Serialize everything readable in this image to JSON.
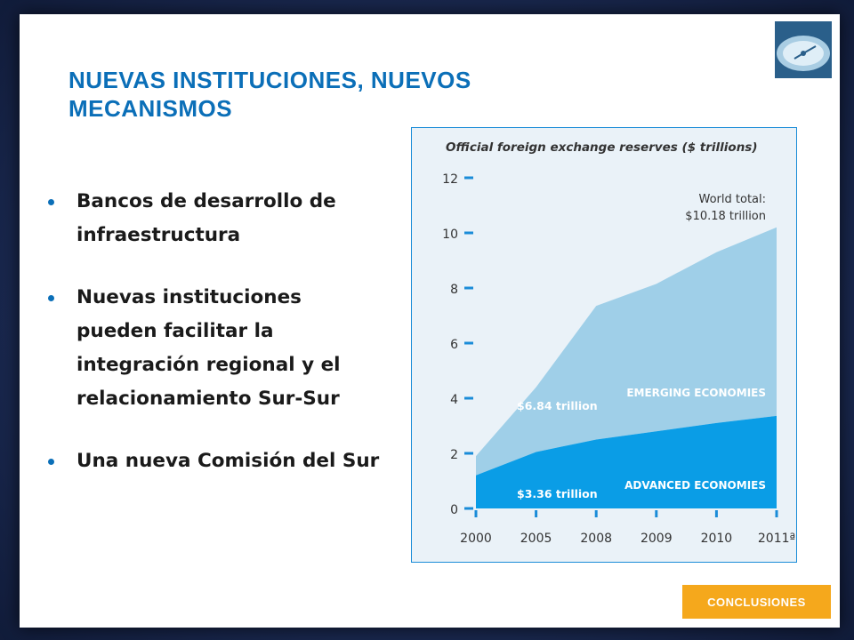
{
  "slide": {
    "title": "NUEVAS INSTITUCIONES, NUEVOS MECANISMOS",
    "bullets": [
      "Bancos de desarrollo de infraestructura",
      "Nuevas instituciones pueden facilitar la integración regional y el relacionamiento Sur-Sur",
      "Una nueva Comisión del Sur"
    ],
    "nav_button": "CONCLUSIONES"
  },
  "logo": {
    "icon": "compass-logo-icon"
  },
  "colors": {
    "title": "#0b6fb8",
    "emerging": "#9fcfe8",
    "advanced": "#0a9de6",
    "button": "#f5a81c",
    "chart_border": "#1a8cd8",
    "chart_bg": "#eaf2f8"
  },
  "chart_data": {
    "type": "area",
    "stacked": true,
    "title": "Official foreign exchange reserves ($ trillions)",
    "categories": [
      "2000",
      "2005",
      "2008",
      "2009",
      "2010",
      "2011a"
    ],
    "category_labels": [
      "2000",
      "2005",
      "2008",
      "2009",
      "2010",
      "2011ª"
    ],
    "ylim": [
      0,
      12
    ],
    "yticks": [
      0,
      2,
      4,
      6,
      8,
      10,
      12
    ],
    "grid": false,
    "series": [
      {
        "name": "ADVANCED ECONOMIES",
        "values": [
          1.2,
          2.05,
          2.5,
          2.8,
          3.1,
          3.36
        ]
      },
      {
        "name": "EMERGING ECONOMIES",
        "values": [
          0.7,
          2.35,
          4.85,
          5.35,
          6.2,
          6.84
        ]
      }
    ],
    "totals": [
      1.9,
      4.4,
      7.35,
      8.15,
      9.3,
      10.2
    ],
    "annotations": {
      "world_total": [
        "World total:",
        "$10.18 trillion"
      ],
      "emerging_value": "$6.84 trillion",
      "advanced_value": "$3.36 trillion"
    }
  }
}
